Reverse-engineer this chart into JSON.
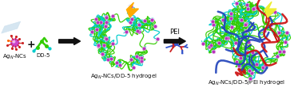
{
  "bg_color": "#ffffff",
  "fig_width": 3.78,
  "fig_height": 1.3,
  "dpi": 100,
  "labels": {
    "ag_ncs": "Ag$_{N}$-NCs",
    "dd5": "DD-5",
    "hydrogel1": "Ag$_{N}$-NCs/DD-5 hydrogel",
    "hydrogel2": "Ag$_{N}$-NCs/DD-5/PEI hydrogel",
    "pei": "PEI"
  },
  "colors": {
    "green": "#33cc00",
    "cyan": "#00cccc",
    "purple": "#cc44cc",
    "purple_node": "#bb33bb",
    "blue": "#3355cc",
    "blue_pei": "#2244bb",
    "red": "#cc2222",
    "red_pei": "#cc1111",
    "orange": "#ffaa00",
    "yellow": "#eeee33",
    "light_gray": "#cce0ee",
    "light_blue_gray": "#aabbcc",
    "white": "#ffffff",
    "black": "#111111"
  },
  "font_size_label": 5.0,
  "font_size_pei": 6.0,
  "font_size_plus": 9
}
